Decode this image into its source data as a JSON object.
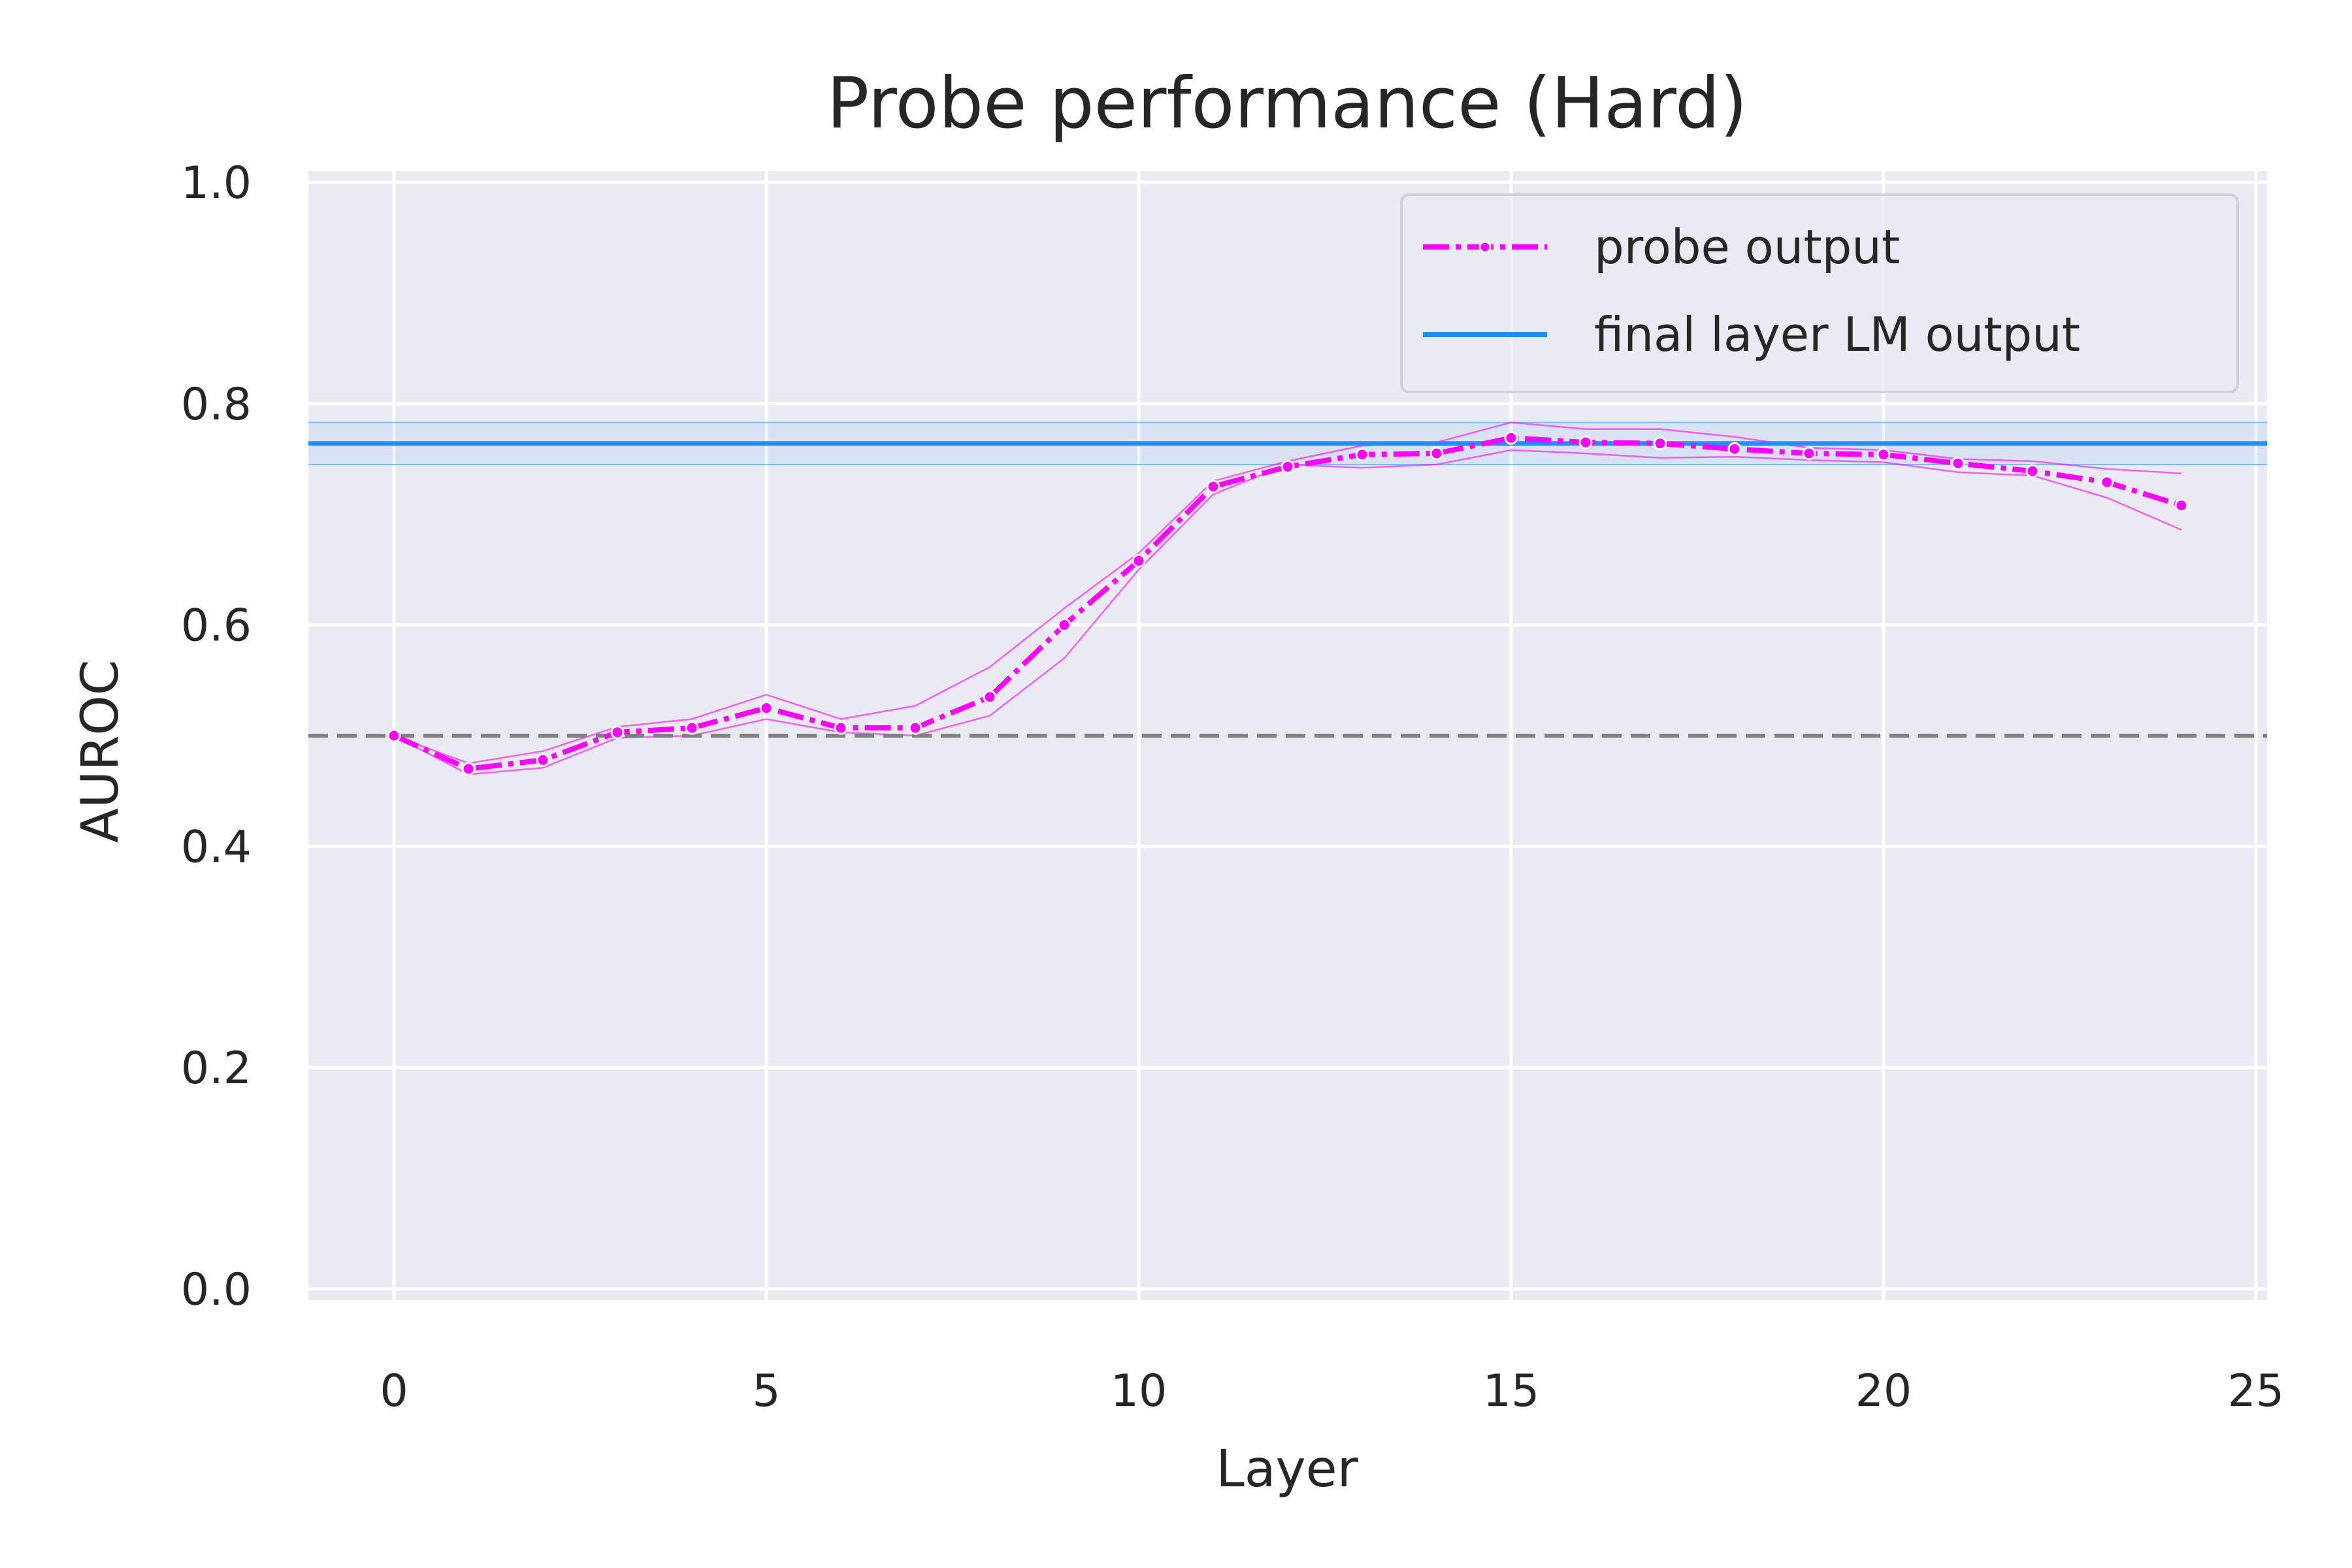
{
  "chart_data": {
    "type": "line",
    "title": "Probe performance (Hard)",
    "xlabel": "Layer",
    "ylabel": "AUROC",
    "xlim": [
      -1.15,
      25.15
    ],
    "ylim": [
      -0.01,
      1.01
    ],
    "xticks": [
      0,
      5,
      10,
      15,
      20,
      25
    ],
    "yticks": [
      0.0,
      0.2,
      0.4,
      0.6,
      0.8,
      1.0
    ],
    "xtick_labels": [
      "0",
      "5",
      "10",
      "15",
      "20",
      "25"
    ],
    "ytick_labels": [
      "0.0",
      "0.2",
      "0.4",
      "0.6",
      "0.8",
      "1.0"
    ],
    "grid": true,
    "legend_position": "top-right",
    "series": [
      {
        "name": "probe output",
        "color": "#ff00ff",
        "style": "dash-dot-markers",
        "x": [
          0,
          1,
          2,
          3,
          4,
          5,
          6,
          7,
          8,
          9,
          10,
          11,
          12,
          13,
          14,
          15,
          16,
          17,
          18,
          19,
          20,
          21,
          22,
          23,
          24
        ],
        "values": [
          0.5,
          0.47,
          0.478,
          0.503,
          0.507,
          0.525,
          0.507,
          0.507,
          0.535,
          0.6,
          0.658,
          0.725,
          0.743,
          0.754,
          0.755,
          0.769,
          0.765,
          0.764,
          0.759,
          0.755,
          0.754,
          0.746,
          0.739,
          0.729,
          0.708
        ],
        "band_upper": [
          0.5,
          0.475,
          0.486,
          0.508,
          0.515,
          0.537,
          0.515,
          0.527,
          0.562,
          0.615,
          0.665,
          0.73,
          0.748,
          0.762,
          0.765,
          0.783,
          0.777,
          0.777,
          0.77,
          0.76,
          0.758,
          0.75,
          0.748,
          0.741,
          0.737
        ],
        "band_lower": [
          0.5,
          0.465,
          0.471,
          0.498,
          0.5,
          0.515,
          0.503,
          0.5,
          0.518,
          0.57,
          0.65,
          0.718,
          0.745,
          0.742,
          0.745,
          0.758,
          0.755,
          0.751,
          0.752,
          0.749,
          0.747,
          0.738,
          0.735,
          0.715,
          0.686
        ]
      },
      {
        "name": "final layer LM output",
        "color": "#1e90ff",
        "style": "hline",
        "value": 0.764,
        "band_upper": 0.783,
        "band_lower": 0.745
      }
    ],
    "reference_line": {
      "value": 0.5,
      "color": "#808080",
      "style": "dashed"
    }
  }
}
